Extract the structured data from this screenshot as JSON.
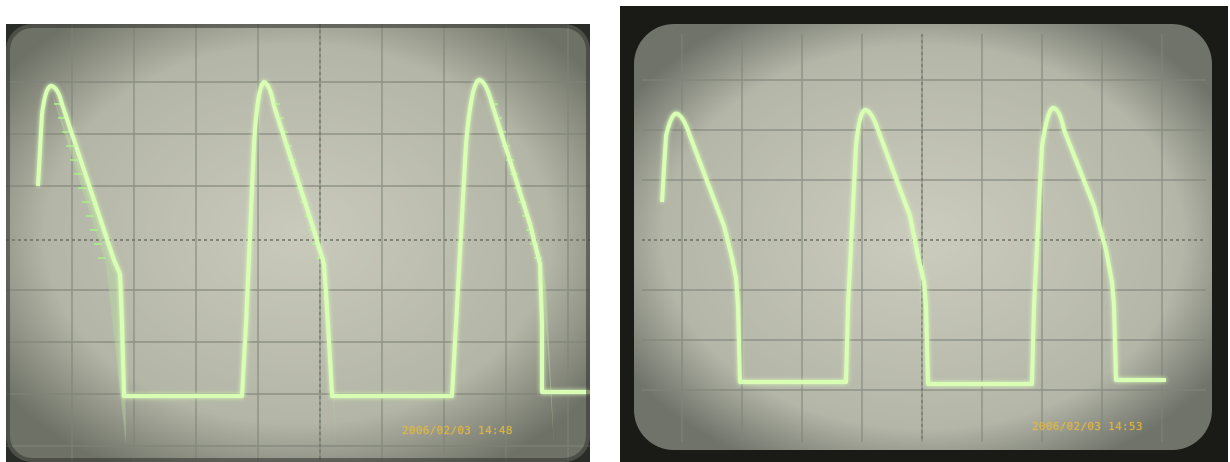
{
  "photos": [
    {
      "id": "left",
      "subject": "oscilloscope-trace-sawtooth-pulse-with-ringing",
      "date_stamp": "2006/02/03 14:48",
      "colors": {
        "screen": "#bfc1b2",
        "grid": "#7f8478",
        "trace": "#d9ffb5",
        "glow": "#9df07a",
        "stamp": "#e6b93a"
      }
    },
    {
      "id": "right",
      "subject": "oscilloscope-trace-sawtooth-pulse",
      "date_stamp": "2006/02/03 14:53",
      "colors": {
        "screen": "#c2c3b4",
        "grid": "#80847a",
        "trace": "#d9ffb5",
        "glow": "#9df07a",
        "stamp": "#e6b93a"
      }
    }
  ]
}
